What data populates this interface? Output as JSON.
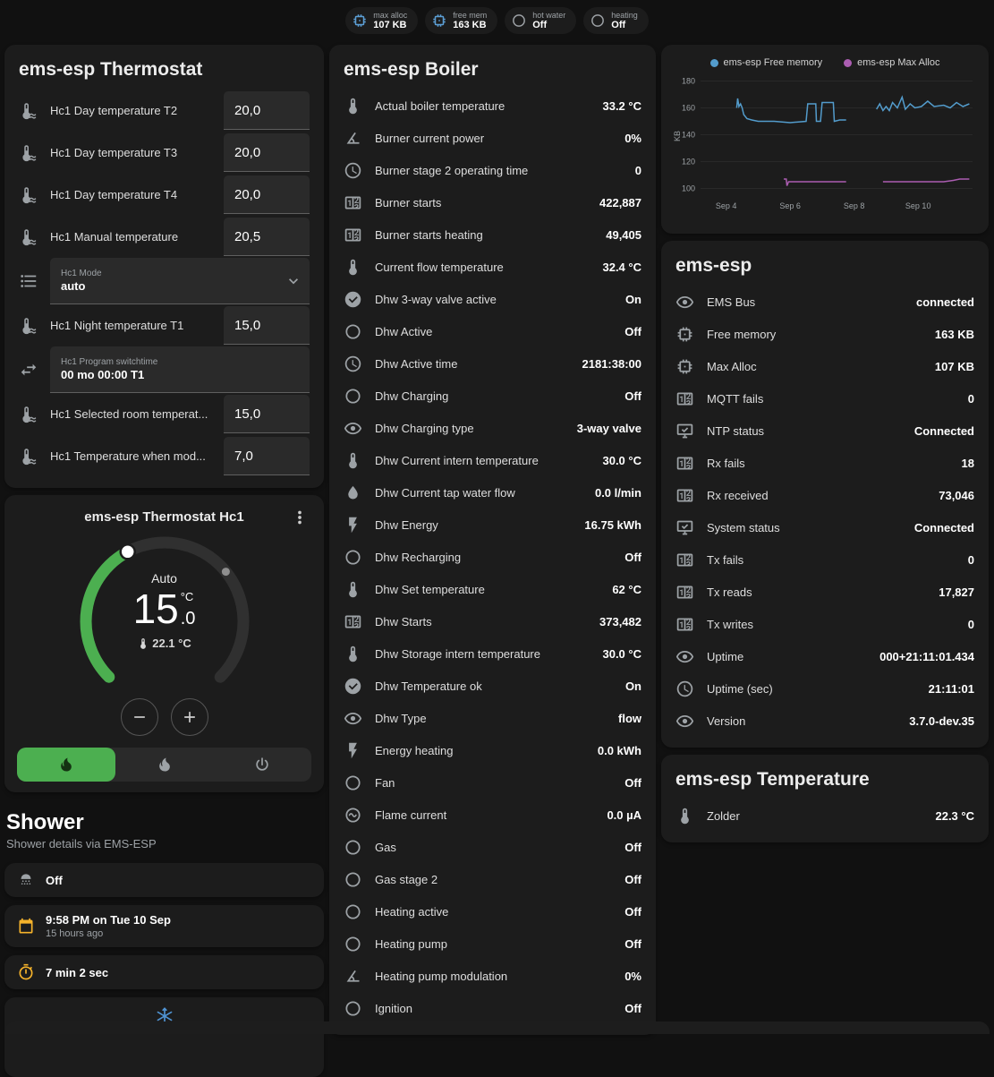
{
  "colors": {
    "accent_blue": "#5c9fd6",
    "amber": "#f6b32b",
    "snowflake_blue": "#4f93d3",
    "thermostat_green": "#4caf50",
    "free_memory_line": "#539ccc",
    "max_alloc_line": "#ab5db1"
  },
  "header": {
    "badges": [
      {
        "icon": "memory",
        "icon_color": "blue",
        "label": "max alloc",
        "value": "107 KB"
      },
      {
        "icon": "memory",
        "icon_color": "blue",
        "label": "free mem",
        "value": "163 KB"
      },
      {
        "icon": "circle",
        "icon_color": "grey",
        "label": "hot water",
        "value": "Off"
      },
      {
        "icon": "circle",
        "icon_color": "grey",
        "label": "heating",
        "value": "Off"
      }
    ]
  },
  "thermostat_card": {
    "title": "ems-esp Thermostat",
    "rows": [
      {
        "type": "number",
        "icon": "thermometer-water",
        "label": "Hc1 Day temperature T2",
        "value": "20,0"
      },
      {
        "type": "number",
        "icon": "thermometer-water",
        "label": "Hc1 Day temperature T3",
        "value": "20,0"
      },
      {
        "type": "number",
        "icon": "thermometer-water",
        "label": "Hc1 Day temperature T4",
        "value": "20,0"
      },
      {
        "type": "number",
        "icon": "thermometer-water",
        "label": "Hc1 Manual temperature",
        "value": "20,5"
      },
      {
        "type": "select",
        "icon": "format-list",
        "label": "Hc1 Mode",
        "value": "auto"
      },
      {
        "type": "number",
        "icon": "thermometer-water",
        "label": "Hc1 Night temperature T1",
        "value": "15,0"
      },
      {
        "type": "text",
        "icon": "swap-horizontal",
        "label": "Hc1 Program switchtime",
        "value": "00 mo 00:00 T1"
      },
      {
        "type": "number",
        "icon": "thermometer-water",
        "label": "Hc1 Selected room temperat...",
        "value": "15,0"
      },
      {
        "type": "number",
        "icon": "thermometer-water",
        "label": "Hc1 Temperature when mod...",
        "value": "7,0"
      }
    ]
  },
  "thermostat_hc1_card": {
    "title": "ems-esp Thermostat Hc1",
    "mode": "Auto",
    "target_int": "15",
    "target_dec": ".0",
    "unit": "°C",
    "current": "22.1 °C"
  },
  "shower": {
    "title": "Shower",
    "subtitle": "Shower details via EMS-ESP",
    "rows": [
      {
        "icon": "shower",
        "icon_color": "grey",
        "value": "Off"
      },
      {
        "icon": "calendar",
        "icon_color": "amber",
        "value": "9:58 PM on Tue 10 Sep",
        "secondary": "15 hours ago"
      },
      {
        "icon": "timer",
        "icon_color": "amber",
        "value": "7 min 2 sec"
      },
      {
        "icon": "snowflake",
        "icon_color": "blue",
        "value": "",
        "center": true
      }
    ]
  },
  "boiler_card": {
    "title": "ems-esp Boiler",
    "rows": [
      {
        "icon": "thermometer",
        "label": "Actual boiler temperature",
        "value": "33.2 °C"
      },
      {
        "icon": "angle",
        "label": "Burner current power",
        "value": "0%"
      },
      {
        "icon": "clock",
        "label": "Burner stage 2 operating time",
        "value": "0"
      },
      {
        "icon": "counter",
        "label": "Burner starts",
        "value": "422,887"
      },
      {
        "icon": "counter",
        "label": "Burner starts heating",
        "value": "49,405"
      },
      {
        "icon": "thermometer",
        "label": "Current flow temperature",
        "value": "32.4 °C"
      },
      {
        "icon": "check-circle",
        "label": "Dhw 3-way valve active",
        "value": "On"
      },
      {
        "icon": "circle",
        "label": "Dhw Active",
        "value": "Off"
      },
      {
        "icon": "clock",
        "label": "Dhw Active time",
        "value": "2181:38:00"
      },
      {
        "icon": "circle",
        "label": "Dhw Charging",
        "value": "Off"
      },
      {
        "icon": "eye",
        "label": "Dhw Charging type",
        "value": "3-way valve"
      },
      {
        "icon": "thermometer",
        "label": "Dhw Current intern temperature",
        "value": "30.0 °C"
      },
      {
        "icon": "water",
        "label": "Dhw Current tap water flow",
        "value": "0.0 l/min"
      },
      {
        "icon": "flash",
        "label": "Dhw Energy",
        "value": "16.75 kWh"
      },
      {
        "icon": "circle",
        "label": "Dhw Recharging",
        "value": "Off"
      },
      {
        "icon": "thermometer",
        "label": "Dhw Set temperature",
        "value": "62 °C"
      },
      {
        "icon": "counter",
        "label": "Dhw Starts",
        "value": "373,482"
      },
      {
        "icon": "thermometer",
        "label": "Dhw Storage intern temperature",
        "value": "30.0 °C"
      },
      {
        "icon": "check-circle",
        "label": "Dhw Temperature ok",
        "value": "On"
      },
      {
        "icon": "eye",
        "label": "Dhw Type",
        "value": "flow"
      },
      {
        "icon": "flash",
        "label": "Energy heating",
        "value": "0.0 kWh"
      },
      {
        "icon": "circle",
        "label": "Fan",
        "value": "Off"
      },
      {
        "icon": "current",
        "label": "Flame current",
        "value": "0.0 µA"
      },
      {
        "icon": "circle",
        "label": "Gas",
        "value": "Off"
      },
      {
        "icon": "circle",
        "label": "Gas stage 2",
        "value": "Off"
      },
      {
        "icon": "circle",
        "label": "Heating active",
        "value": "Off"
      },
      {
        "icon": "circle",
        "label": "Heating pump",
        "value": "Off"
      },
      {
        "icon": "angle",
        "label": "Heating pump modulation",
        "value": "0%"
      },
      {
        "icon": "circle",
        "label": "Ignition",
        "value": "Off"
      }
    ]
  },
  "emsesp_card": {
    "title": "ems-esp",
    "rows": [
      {
        "icon": "eye",
        "label": "EMS Bus",
        "value": "connected"
      },
      {
        "icon": "memory",
        "label": "Free memory",
        "value": "163 KB"
      },
      {
        "icon": "memory",
        "label": "Max Alloc",
        "value": "107 KB"
      },
      {
        "icon": "counter",
        "label": "MQTT fails",
        "value": "0"
      },
      {
        "icon": "monitor-check",
        "label": "NTP status",
        "value": "Connected"
      },
      {
        "icon": "counter",
        "label": "Rx fails",
        "value": "18"
      },
      {
        "icon": "counter",
        "label": "Rx received",
        "value": "73,046"
      },
      {
        "icon": "monitor-check",
        "label": "System status",
        "value": "Connected"
      },
      {
        "icon": "counter",
        "label": "Tx fails",
        "value": "0"
      },
      {
        "icon": "counter",
        "label": "Tx reads",
        "value": "17,827"
      },
      {
        "icon": "counter",
        "label": "Tx writes",
        "value": "0"
      },
      {
        "icon": "eye",
        "label": "Uptime",
        "value": "000+21:11:01.434"
      },
      {
        "icon": "clock",
        "label": "Uptime (sec)",
        "value": "21:11:01"
      },
      {
        "icon": "eye",
        "label": "Version",
        "value": "3.7.0-dev.35"
      }
    ]
  },
  "temperature_card": {
    "title": "ems-esp Temperature",
    "rows": [
      {
        "icon": "thermometer",
        "label": "Zolder",
        "value": "22.3 °C"
      }
    ]
  },
  "chart_data": {
    "type": "line",
    "title": "",
    "xlabel": "",
    "ylabel": "KB",
    "ylim": [
      95,
      183
    ],
    "yticks": [
      100,
      120,
      140,
      160,
      180
    ],
    "xlim": [
      3.2,
      11.7
    ],
    "xticks": [
      {
        "x": 4,
        "label": "Sep 4"
      },
      {
        "x": 6,
        "label": "Sep 6"
      },
      {
        "x": 8,
        "label": "Sep 8"
      },
      {
        "x": 10,
        "label": "Sep 10"
      }
    ],
    "grid": true,
    "legend_position": "top",
    "series": [
      {
        "name": "ems-esp Free memory",
        "color": "#539ccc",
        "points": [
          [
            4.33,
            160
          ],
          [
            4.36,
            167
          ],
          [
            4.4,
            161
          ],
          [
            4.45,
            163
          ],
          [
            4.5,
            160
          ],
          [
            4.55,
            155
          ],
          [
            4.65,
            152
          ],
          [
            4.8,
            151
          ],
          [
            5.0,
            150
          ],
          [
            5.5,
            150
          ],
          [
            6.0,
            149
          ],
          [
            6.5,
            150
          ],
          [
            6.55,
            163
          ],
          [
            6.8,
            163
          ],
          [
            6.82,
            150
          ],
          [
            6.95,
            150
          ],
          [
            7.0,
            164
          ],
          [
            7.35,
            164
          ],
          [
            7.38,
            150
          ],
          [
            7.55,
            151
          ],
          [
            7.75,
            151
          ],
          null,
          [
            8.7,
            159
          ],
          [
            8.8,
            163
          ],
          [
            8.9,
            158
          ],
          [
            9.0,
            161
          ],
          [
            9.1,
            158
          ],
          [
            9.2,
            164
          ],
          [
            9.35,
            160
          ],
          [
            9.5,
            168
          ],
          [
            9.6,
            159
          ],
          [
            9.75,
            163
          ],
          [
            9.9,
            160
          ],
          [
            10.1,
            161
          ],
          [
            10.3,
            165
          ],
          [
            10.5,
            161
          ],
          [
            10.8,
            162
          ],
          [
            11.0,
            160
          ],
          [
            11.2,
            164
          ],
          [
            11.4,
            161
          ],
          [
            11.6,
            163
          ]
        ]
      },
      {
        "name": "ems-esp Max Alloc",
        "color": "#ab5db1",
        "points": [
          [
            5.8,
            107
          ],
          [
            5.88,
            107
          ],
          [
            5.9,
            102
          ],
          [
            5.95,
            105
          ],
          [
            6.5,
            105
          ],
          [
            7.0,
            105
          ],
          [
            7.75,
            105
          ],
          null,
          [
            8.9,
            105
          ],
          [
            9.5,
            105
          ],
          [
            10.2,
            105
          ],
          [
            10.8,
            105
          ],
          [
            11.1,
            106
          ],
          [
            11.3,
            107
          ],
          [
            11.6,
            107
          ]
        ]
      }
    ]
  }
}
